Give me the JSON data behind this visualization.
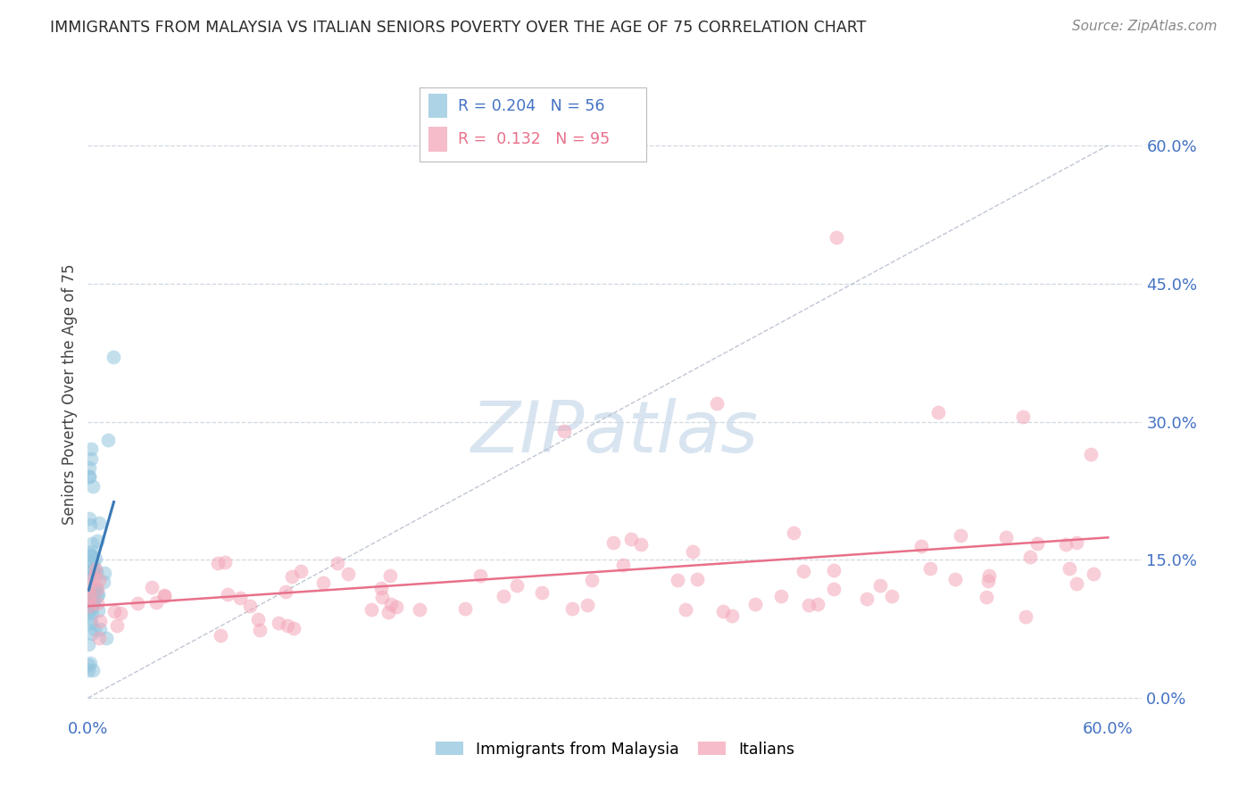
{
  "title": "IMMIGRANTS FROM MALAYSIA VS ITALIAN SENIORS POVERTY OVER THE AGE OF 75 CORRELATION CHART",
  "source": "Source: ZipAtlas.com",
  "ylabel": "Seniors Poverty Over the Age of 75",
  "xlim": [
    0.0,
    0.62
  ],
  "ylim": [
    -0.02,
    0.68
  ],
  "ytick_positions": [
    0.0,
    0.15,
    0.3,
    0.45,
    0.6
  ],
  "ytick_labels": [
    "0.0%",
    "15.0%",
    "30.0%",
    "45.0%",
    "60.0%"
  ],
  "xtick_positions": [
    0.0,
    0.6
  ],
  "xtick_labels": [
    "0.0%",
    "60.0%"
  ],
  "legend_label_blue": "Immigrants from Malaysia",
  "legend_label_pink": "Italians",
  "R_blue": 0.204,
  "N_blue": 56,
  "R_pink": 0.132,
  "N_pink": 95,
  "blue_color": "#92c5de",
  "pink_color": "#f4a6b8",
  "blue_line_color": "#3a7ab8",
  "pink_line_color": "#e8708a",
  "diag_line_color": "#b0b8c8",
  "background_color": "#ffffff",
  "grid_color": "#d0d8e0",
  "title_color": "#2a2a2a",
  "ylabel_color": "#444444",
  "tick_color": "#4472c4",
  "watermark_color": "#d8e4f0",
  "source_color": "#888888"
}
